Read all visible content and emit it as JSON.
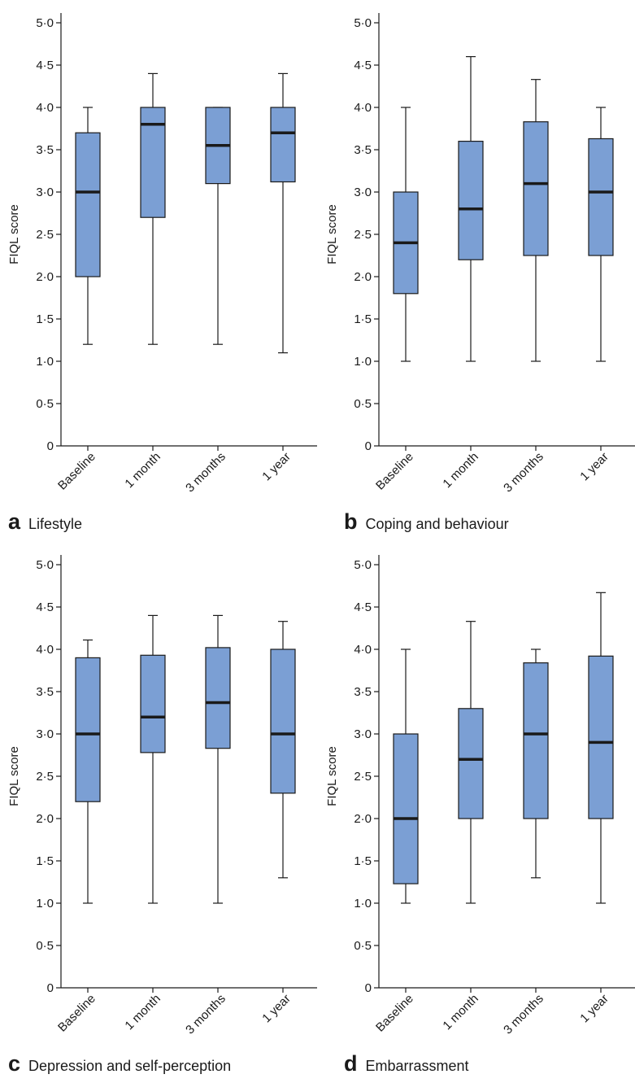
{
  "chart_data": [
    {
      "type": "box",
      "panel": "a",
      "subtitle": "Lifestyle",
      "ylabel": "FIQL score",
      "ylim": [
        0,
        5
      ],
      "yticks": [
        "0",
        "0·5",
        "1·0",
        "1·5",
        "2·0",
        "2·5",
        "3·0",
        "3·5",
        "4·0",
        "4·5",
        "5·0"
      ],
      "categories": [
        "Baseline",
        "1 month",
        "3 months",
        "1 year"
      ],
      "boxes": [
        {
          "min": 1.2,
          "q1": 2.0,
          "median": 3.0,
          "q3": 3.7,
          "max": 4.0
        },
        {
          "min": 1.2,
          "q1": 2.7,
          "median": 3.8,
          "q3": 4.0,
          "max": 4.4
        },
        {
          "min": 1.2,
          "q1": 3.1,
          "median": 3.55,
          "q3": 4.0,
          "max": 4.0
        },
        {
          "min": 1.1,
          "q1": 3.12,
          "median": 3.7,
          "q3": 4.0,
          "max": 4.4
        }
      ],
      "box_color": "#7b9fd4"
    },
    {
      "type": "box",
      "panel": "b",
      "subtitle": "Coping and behaviour",
      "ylabel": "FIQL score",
      "ylim": [
        0,
        5
      ],
      "yticks": [
        "0",
        "0·5",
        "1·0",
        "1·5",
        "2·0",
        "2·5",
        "3·0",
        "3·5",
        "4·0",
        "4·5",
        "5·0"
      ],
      "categories": [
        "Baseline",
        "1 month",
        "3 months",
        "1 year"
      ],
      "boxes": [
        {
          "min": 1.0,
          "q1": 1.8,
          "median": 2.4,
          "q3": 3.0,
          "max": 4.0
        },
        {
          "min": 1.0,
          "q1": 2.2,
          "median": 2.8,
          "q3": 3.6,
          "max": 4.6
        },
        {
          "min": 1.0,
          "q1": 2.25,
          "median": 3.1,
          "q3": 3.83,
          "max": 4.33
        },
        {
          "min": 1.0,
          "q1": 2.25,
          "median": 3.0,
          "q3": 3.63,
          "max": 4.0
        }
      ],
      "box_color": "#7b9fd4"
    },
    {
      "type": "box",
      "panel": "c",
      "subtitle": "Depression and self-perception",
      "ylabel": "FIQL score",
      "ylim": [
        0,
        5
      ],
      "yticks": [
        "0",
        "0·5",
        "1·0",
        "1·5",
        "2·0",
        "2·5",
        "3·0",
        "3·5",
        "4·0",
        "4·5",
        "5·0"
      ],
      "categories": [
        "Baseline",
        "1 month",
        "3 months",
        "1 year"
      ],
      "boxes": [
        {
          "min": 1.0,
          "q1": 2.2,
          "median": 3.0,
          "q3": 3.9,
          "max": 4.11
        },
        {
          "min": 1.0,
          "q1": 2.78,
          "median": 3.2,
          "q3": 3.93,
          "max": 4.4
        },
        {
          "min": 1.0,
          "q1": 2.83,
          "median": 3.37,
          "q3": 4.02,
          "max": 4.4
        },
        {
          "min": 1.3,
          "q1": 2.3,
          "median": 3.0,
          "q3": 4.0,
          "max": 4.33
        }
      ],
      "box_color": "#7b9fd4"
    },
    {
      "type": "box",
      "panel": "d",
      "subtitle": "Embarrassment",
      "ylabel": "FIQL score",
      "ylim": [
        0,
        5
      ],
      "yticks": [
        "0",
        "0·5",
        "1·0",
        "1·5",
        "2·0",
        "2·5",
        "3·0",
        "3·5",
        "4·0",
        "4·5",
        "5·0"
      ],
      "categories": [
        "Baseline",
        "1 month",
        "3 months",
        "1 year"
      ],
      "boxes": [
        {
          "min": 1.0,
          "q1": 1.23,
          "median": 2.0,
          "q3": 3.0,
          "max": 4.0
        },
        {
          "min": 1.0,
          "q1": 2.0,
          "median": 2.7,
          "q3": 3.3,
          "max": 4.33
        },
        {
          "min": 1.3,
          "q1": 2.0,
          "median": 3.0,
          "q3": 3.84,
          "max": 4.0
        },
        {
          "min": 1.0,
          "q1": 2.0,
          "median": 2.9,
          "q3": 3.92,
          "max": 4.67
        }
      ],
      "box_color": "#7b9fd4"
    }
  ]
}
